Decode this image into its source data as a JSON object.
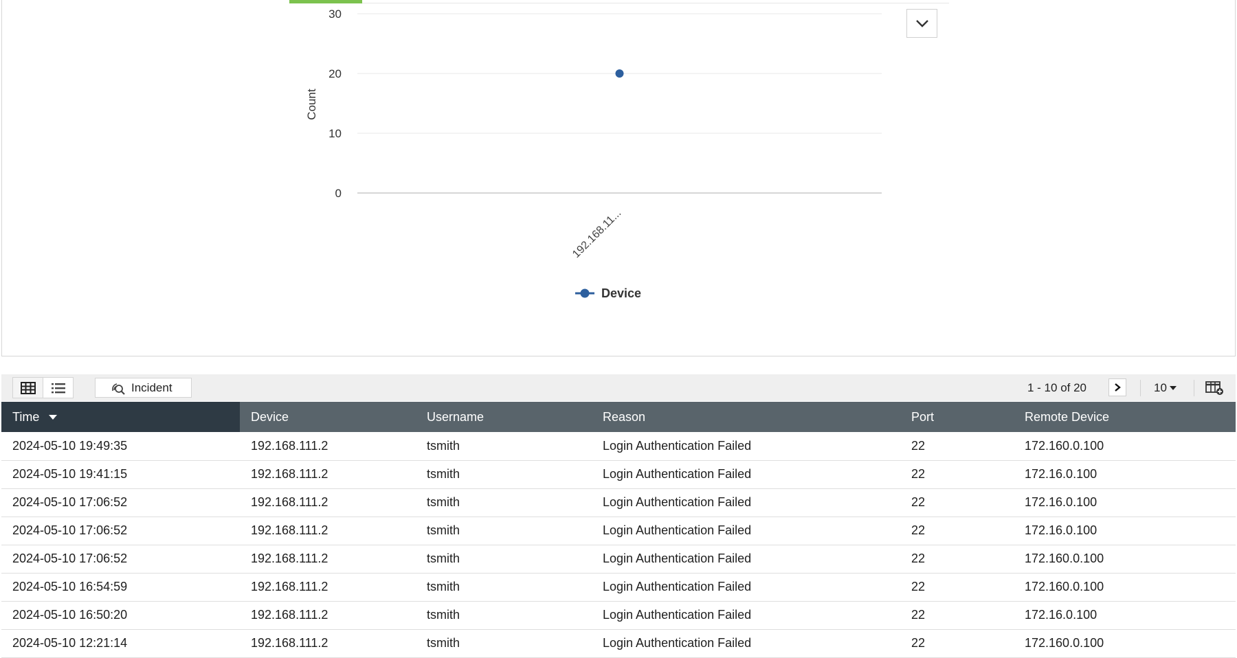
{
  "chart": {
    "legend_label": "Device",
    "series_color": "#2d5f9e"
  },
  "chart_data": {
    "type": "line",
    "categories": [
      "192.168.11..."
    ],
    "series": [
      {
        "name": "Device",
        "values": [
          20
        ]
      }
    ],
    "ylabel": "Count",
    "xlabel": "",
    "ylim": [
      0,
      30
    ],
    "yticks": [
      0,
      10,
      20,
      30
    ],
    "grid": true,
    "legend": "bottom-center"
  },
  "toolbar": {
    "incident_label": "Incident",
    "pagination_text": "1 - 10 of 20",
    "page_size": "10"
  },
  "table": {
    "columns": [
      "Time",
      "Device",
      "Username",
      "Reason",
      "Port",
      "Remote Device"
    ],
    "rows": [
      [
        "2024-05-10 19:49:35",
        "192.168.111.2",
        "tsmith",
        "Login Authentication Failed",
        "22",
        "172.160.0.100"
      ],
      [
        "2024-05-10 19:41:15",
        "192.168.111.2",
        "tsmith",
        "Login Authentication Failed",
        "22",
        "172.16.0.100"
      ],
      [
        "2024-05-10 17:06:52",
        "192.168.111.2",
        "tsmith",
        "Login Authentication Failed",
        "22",
        "172.16.0.100"
      ],
      [
        "2024-05-10 17:06:52",
        "192.168.111.2",
        "tsmith",
        "Login Authentication Failed",
        "22",
        "172.16.0.100"
      ],
      [
        "2024-05-10 17:06:52",
        "192.168.111.2",
        "tsmith",
        "Login Authentication Failed",
        "22",
        "172.160.0.100"
      ],
      [
        "2024-05-10 16:54:59",
        "192.168.111.2",
        "tsmith",
        "Login Authentication Failed",
        "22",
        "172.160.0.100"
      ],
      [
        "2024-05-10 16:50:20",
        "192.168.111.2",
        "tsmith",
        "Login Authentication Failed",
        "22",
        "172.16.0.100"
      ],
      [
        "2024-05-10 12:21:14",
        "192.168.111.2",
        "tsmith",
        "Login Authentication Failed",
        "22",
        "172.160.0.100"
      ]
    ]
  }
}
